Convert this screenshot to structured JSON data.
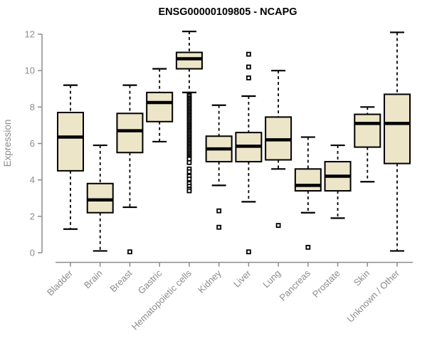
{
  "chart": {
    "title": "ENSG00000109805 - NCAPG",
    "y_label": "Expression"
  },
  "colors": {
    "background": "#ffffff",
    "box_fill": "#ece5c8",
    "box_stroke": "#000000",
    "median_stroke": "#000000",
    "axis": "#8c8c8c",
    "tick_label": "#8c8c8c",
    "title_color": "#000000",
    "outlier_fill": "#ffffff",
    "outlier_stroke": "#000000"
  },
  "chart_data": {
    "type": "boxplot",
    "title": "ENSG00000109805 - NCAPG",
    "xlabel": "",
    "ylabel": "Expression",
    "ylim": [
      0,
      12
    ],
    "yticks": [
      0,
      2,
      4,
      6,
      8,
      10,
      12
    ],
    "grid": false,
    "legend": false,
    "categories": [
      "Bladder",
      "Brain",
      "Breast",
      "Gastric",
      "Hematopoietic cells",
      "Kidney",
      "Liver",
      "Lung",
      "Pancreas",
      "Prostate",
      "Skin",
      "Unknown / Other"
    ],
    "series": [
      {
        "name": "Bladder",
        "whisker_low": 1.3,
        "q1": 4.5,
        "median": 6.35,
        "q3": 7.7,
        "whisker_high": 9.2,
        "outliers": []
      },
      {
        "name": "Brain",
        "whisker_low": 0.1,
        "q1": 2.2,
        "median": 2.9,
        "q3": 3.8,
        "whisker_high": 5.9,
        "outliers": []
      },
      {
        "name": "Breast",
        "whisker_low": 2.5,
        "q1": 5.5,
        "median": 6.7,
        "q3": 7.65,
        "whisker_high": 9.2,
        "outliers": [
          0.05
        ]
      },
      {
        "name": "Gastric",
        "whisker_low": 6.1,
        "q1": 7.2,
        "median": 8.25,
        "q3": 8.8,
        "whisker_high": 10.1,
        "outliers": []
      },
      {
        "name": "Hematopoietic cells",
        "whisker_low": 8.8,
        "q1": 10.1,
        "median": 10.65,
        "q3": 11.0,
        "whisker_high": 12.15,
        "outliers": [
          8.65,
          8.6,
          8.5,
          8.42,
          8.34,
          8.26,
          8.18,
          8.1,
          8.02,
          7.94,
          7.86,
          7.78,
          7.7,
          7.62,
          7.54,
          7.46,
          7.38,
          7.3,
          7.22,
          7.14,
          7.06,
          6.98,
          6.9,
          6.82,
          6.74,
          6.66,
          6.58,
          6.5,
          6.42,
          6.34,
          6.26,
          6.18,
          6.1,
          6.02,
          5.94,
          5.86,
          5.78,
          5.7,
          5.62,
          5.54,
          5.46,
          5.38,
          5.3,
          5.22,
          5.15,
          4.95,
          4.6,
          4.45,
          4.2,
          4.05,
          3.8,
          3.65,
          3.5,
          3.4
        ]
      },
      {
        "name": "Kidney",
        "whisker_low": 3.7,
        "q1": 5.0,
        "median": 5.7,
        "q3": 6.4,
        "whisker_high": 8.1,
        "outliers": [
          2.3,
          1.4
        ]
      },
      {
        "name": "Liver",
        "whisker_low": 2.8,
        "q1": 5.0,
        "median": 5.85,
        "q3": 6.6,
        "whisker_high": 8.6,
        "outliers": [
          10.9,
          10.2,
          9.6,
          0.05
        ]
      },
      {
        "name": "Lung",
        "whisker_low": 4.6,
        "q1": 5.1,
        "median": 6.2,
        "q3": 7.45,
        "whisker_high": 10.0,
        "outliers": [
          1.5
        ]
      },
      {
        "name": "Pancreas",
        "whisker_low": 2.2,
        "q1": 3.4,
        "median": 3.7,
        "q3": 4.6,
        "whisker_high": 6.35,
        "outliers": [
          0.3
        ]
      },
      {
        "name": "Prostate",
        "whisker_low": 1.9,
        "q1": 3.4,
        "median": 4.2,
        "q3": 5.0,
        "whisker_high": 5.9,
        "outliers": []
      },
      {
        "name": "Skin",
        "whisker_low": 3.9,
        "q1": 5.8,
        "median": 7.1,
        "q3": 7.6,
        "whisker_high": 8.0,
        "outliers": []
      },
      {
        "name": "Unknown / Other",
        "whisker_low": 0.1,
        "q1": 4.9,
        "median": 7.1,
        "q3": 8.7,
        "whisker_high": 12.1,
        "outliers": []
      }
    ]
  }
}
